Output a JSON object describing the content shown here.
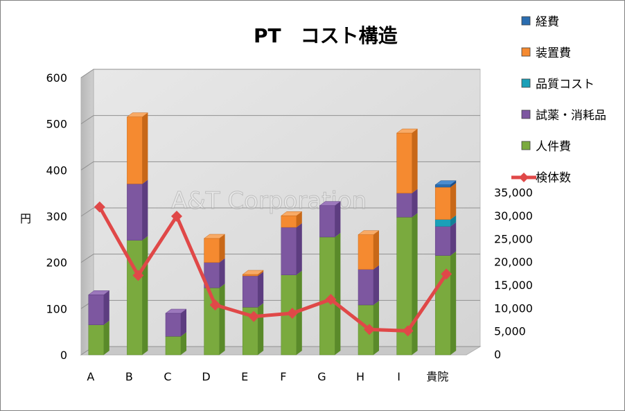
{
  "chart_data": {
    "type": "bar",
    "title": "PT　コスト構造",
    "ylabel": "円",
    "watermark": "A&T Corporation",
    "categories": [
      "A",
      "B",
      "C",
      "D",
      "E",
      "F",
      "G",
      "H",
      "I",
      "貴院"
    ],
    "ylim": [
      0,
      600
    ],
    "y_ticks": [
      0,
      100,
      200,
      300,
      400,
      500,
      600
    ],
    "y2lim": [
      0,
      60000
    ],
    "y2_ticks": [
      0,
      5000,
      10000,
      15000,
      20000,
      25000,
      30000,
      35000
    ],
    "y2_tick_labels": [
      "0",
      "5,000",
      "10,000",
      "15,000",
      "20,000",
      "25,000",
      "30,000",
      "35,000"
    ],
    "stacked": true,
    "series": [
      {
        "name": "人件費",
        "color": "#7aaa3e",
        "side": "#5a8a2a",
        "top": "#9cc260",
        "values": [
          65,
          248,
          40,
          145,
          103,
          173,
          255,
          108,
          298,
          215
        ]
      },
      {
        "name": "試薬・消耗品",
        "color": "#7d57a0",
        "side": "#5d3d80",
        "top": "#9c78bc",
        "values": [
          65,
          122,
          50,
          55,
          68,
          103,
          68,
          77,
          52,
          63
        ]
      },
      {
        "name": "品質コスト",
        "color": "#1aa0b8",
        "side": "#128096",
        "top": "#4cc0d4",
        "values": [
          0,
          0,
          0,
          0,
          0,
          0,
          0,
          0,
          0,
          15
        ]
      },
      {
        "name": "装置費",
        "color": "#f58a30",
        "side": "#c86818",
        "top": "#f8aa66",
        "values": [
          0,
          145,
          0,
          52,
          3,
          25,
          0,
          75,
          130,
          70
        ]
      },
      {
        "name": "経費",
        "color": "#2a6db0",
        "side": "#1a4e88",
        "top": "#4a8cd0",
        "values": [
          0,
          0,
          0,
          0,
          0,
          0,
          0,
          0,
          0,
          5
        ]
      }
    ],
    "line": {
      "name": "検体数",
      "color": "#e04848",
      "axis": "secondary",
      "values": [
        32000,
        17200,
        30000,
        10800,
        8300,
        9000,
        12000,
        5500,
        5200,
        17500
      ]
    },
    "legend": [
      {
        "name": "経費",
        "color": "#2a6db0",
        "kind": "box"
      },
      {
        "name": "装置費",
        "color": "#f58a30",
        "kind": "box"
      },
      {
        "name": "品質コスト",
        "color": "#1aa0b8",
        "kind": "box"
      },
      {
        "name": "試薬・消耗品",
        "color": "#7d57a0",
        "kind": "box"
      },
      {
        "name": "人件費",
        "color": "#7aaa3e",
        "kind": "box"
      },
      {
        "name": "検体数",
        "color": "#e04848",
        "kind": "line"
      }
    ],
    "legend_position": "right",
    "grid": true
  }
}
